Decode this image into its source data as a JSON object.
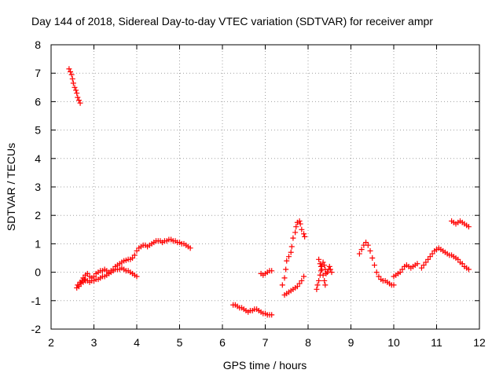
{
  "chart_data": {
    "type": "scatter",
    "title": "Day 144 of 2018, Sidereal Day-to-day VTEC variation (SDTVAR) for receiver ampr",
    "xlabel": "GPS time / hours",
    "ylabel": "SDTVAR / TECUs",
    "xlim": [
      2,
      12
    ],
    "ylim": [
      -2,
      8
    ],
    "xticks": [
      "2",
      "3",
      "4",
      "5",
      "6",
      "7",
      "8",
      "9",
      "10",
      "11",
      "12"
    ],
    "yticks": [
      "-2",
      "-1",
      "0",
      "1",
      "2",
      "3",
      "4",
      "5",
      "6",
      "7",
      "8"
    ],
    "grid": true,
    "marker": "+",
    "color": "#ff0000",
    "series": [
      {
        "name": "s1",
        "x": [
          2.42,
          2.45,
          2.48,
          2.5,
          2.52,
          2.55,
          2.58,
          2.6,
          2.62,
          2.65,
          2.68
        ],
        "y": [
          7.15,
          7.05,
          6.95,
          6.8,
          6.65,
          6.5,
          6.4,
          6.3,
          6.15,
          6.05,
          5.95
        ]
      },
      {
        "name": "s2",
        "x": [
          2.6,
          2.62,
          2.65,
          2.68,
          2.7,
          2.72,
          2.75,
          2.78,
          2.8,
          2.85,
          2.9,
          2.95,
          3.0,
          3.05,
          3.1,
          3.15,
          3.2,
          3.25,
          3.3,
          3.35,
          3.4,
          3.45,
          3.5,
          3.55,
          3.6,
          3.65,
          3.7,
          3.75,
          3.8,
          3.85,
          3.9,
          3.95,
          4.0
        ],
        "y": [
          -0.55,
          -0.45,
          -0.5,
          -0.35,
          -0.4,
          -0.3,
          -0.35,
          -0.25,
          -0.3,
          -0.3,
          -0.35,
          -0.3,
          -0.3,
          -0.25,
          -0.25,
          -0.2,
          -0.15,
          -0.15,
          -0.1,
          -0.05,
          0.0,
          0.05,
          0.1,
          0.1,
          0.1,
          0.15,
          0.1,
          0.05,
          0.05,
          0.0,
          -0.05,
          -0.1,
          -0.15
        ]
      },
      {
        "name": "s3",
        "x": [
          2.75,
          2.8,
          2.85,
          2.9,
          2.95,
          3.0,
          3.05,
          3.1,
          3.15,
          3.2,
          3.25,
          3.3,
          3.35,
          3.4,
          3.45,
          3.5,
          3.55,
          3.6,
          3.65,
          3.7,
          3.75,
          3.8,
          3.85,
          3.9,
          3.95,
          4.0,
          4.05,
          4.1,
          4.15,
          4.2,
          4.25,
          4.3,
          4.35,
          4.4,
          4.45,
          4.5,
          4.55,
          4.6,
          4.65,
          4.7,
          4.75,
          4.8,
          4.85,
          4.9,
          4.95,
          5.0,
          5.05,
          5.1,
          5.15,
          5.2,
          5.25
        ],
        "y": [
          -0.2,
          -0.1,
          -0.05,
          -0.15,
          -0.2,
          -0.15,
          -0.05,
          0.0,
          0.05,
          0.05,
          0.1,
          0.05,
          0.0,
          0.05,
          0.1,
          0.2,
          0.25,
          0.3,
          0.35,
          0.4,
          0.42,
          0.45,
          0.45,
          0.5,
          0.6,
          0.75,
          0.85,
          0.9,
          0.95,
          0.95,
          0.9,
          0.95,
          1.0,
          1.05,
          1.1,
          1.1,
          1.1,
          1.05,
          1.1,
          1.1,
          1.15,
          1.15,
          1.1,
          1.1,
          1.05,
          1.05,
          1.0,
          1.0,
          0.95,
          0.9,
          0.85
        ]
      },
      {
        "name": "s4",
        "x": [
          6.25,
          6.3,
          6.35,
          6.4,
          6.45,
          6.5,
          6.55,
          6.6,
          6.65,
          6.7,
          6.75,
          6.8,
          6.85,
          6.9,
          6.95,
          7.0,
          7.05,
          7.1,
          7.15
        ],
        "y": [
          -1.15,
          -1.15,
          -1.2,
          -1.25,
          -1.25,
          -1.3,
          -1.35,
          -1.4,
          -1.35,
          -1.35,
          -1.3,
          -1.3,
          -1.35,
          -1.4,
          -1.45,
          -1.45,
          -1.5,
          -1.5,
          -1.5
        ]
      },
      {
        "name": "s5",
        "x": [
          6.9,
          6.95,
          7.0,
          7.05,
          7.1,
          7.15
        ],
        "y": [
          -0.05,
          -0.1,
          -0.05,
          0.0,
          0.05,
          0.05
        ]
      },
      {
        "name": "s6",
        "x": [
          7.4,
          7.45,
          7.48,
          7.5,
          7.55,
          7.6,
          7.62,
          7.65,
          7.7,
          7.72,
          7.75,
          7.8,
          7.82,
          7.85,
          7.9,
          7.92
        ],
        "y": [
          -0.45,
          -0.2,
          0.1,
          0.4,
          0.55,
          0.7,
          0.9,
          1.2,
          1.4,
          1.6,
          1.75,
          1.8,
          1.7,
          1.5,
          1.35,
          1.25
        ]
      },
      {
        "name": "s7",
        "x": [
          7.45,
          7.5,
          7.55,
          7.6,
          7.65,
          7.7,
          7.75,
          7.8,
          7.85,
          7.9
        ],
        "y": [
          -0.8,
          -0.75,
          -0.7,
          -0.65,
          -0.6,
          -0.55,
          -0.5,
          -0.4,
          -0.3,
          -0.15
        ]
      },
      {
        "name": "s8",
        "x": [
          8.2,
          8.22,
          8.25,
          8.28,
          8.3,
          8.32,
          8.35,
          8.38,
          8.4,
          8.42,
          8.45,
          8.48,
          8.5,
          8.52,
          8.55
        ],
        "y": [
          -0.6,
          -0.45,
          -0.3,
          -0.1,
          0.05,
          0.2,
          0.35,
          0.25,
          0.1,
          -0.05,
          0.0,
          0.1,
          0.2,
          0.1,
          0.0
        ]
      },
      {
        "name": "s9",
        "x": [
          8.25,
          8.28,
          8.3,
          8.32,
          8.35,
          8.38,
          8.4
        ],
        "y": [
          0.45,
          0.3,
          0.2,
          0.1,
          -0.1,
          -0.3,
          -0.45
        ]
      },
      {
        "name": "s10",
        "x": [
          9.2,
          9.25,
          9.3,
          9.35,
          9.4,
          9.45,
          9.5,
          9.55,
          9.6,
          9.65,
          9.7,
          9.75,
          9.8,
          9.85,
          9.9,
          9.95,
          10.0
        ],
        "y": [
          0.65,
          0.8,
          0.95,
          1.05,
          0.95,
          0.75,
          0.5,
          0.25,
          0.0,
          -0.15,
          -0.25,
          -0.3,
          -0.3,
          -0.35,
          -0.4,
          -0.45,
          -0.45
        ]
      },
      {
        "name": "s11",
        "x": [
          10.0,
          10.05,
          10.1,
          10.15,
          10.2,
          10.25,
          10.3,
          10.35,
          10.4,
          10.45,
          10.5,
          10.55
        ],
        "y": [
          -0.15,
          -0.1,
          -0.05,
          0.0,
          0.1,
          0.2,
          0.25,
          0.2,
          0.15,
          0.2,
          0.25,
          0.3
        ]
      },
      {
        "name": "s12",
        "x": [
          10.65,
          10.7,
          10.75,
          10.8,
          10.85,
          10.9,
          10.95,
          11.0,
          11.05,
          11.1,
          11.15,
          11.2,
          11.25,
          11.3,
          11.35,
          11.4,
          11.45,
          11.5,
          11.55,
          11.6,
          11.65,
          11.7,
          11.75
        ],
        "y": [
          0.15,
          0.25,
          0.35,
          0.45,
          0.55,
          0.65,
          0.75,
          0.8,
          0.85,
          0.8,
          0.75,
          0.7,
          0.65,
          0.6,
          0.6,
          0.55,
          0.5,
          0.45,
          0.35,
          0.3,
          0.2,
          0.15,
          0.1
        ]
      },
      {
        "name": "s13",
        "x": [
          11.35,
          11.4,
          11.45,
          11.5,
          11.55,
          11.6,
          11.65,
          11.7,
          11.75
        ],
        "y": [
          1.8,
          1.75,
          1.7,
          1.75,
          1.8,
          1.75,
          1.7,
          1.65,
          1.6
        ]
      }
    ]
  }
}
